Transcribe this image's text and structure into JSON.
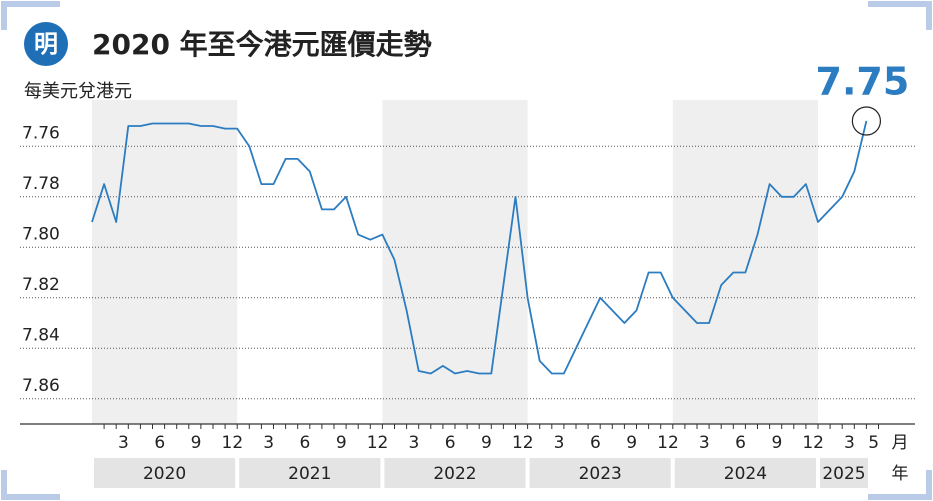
{
  "logo": "明",
  "chart_data": {
    "type": "line",
    "title": "2020 年至今港元匯價走勢",
    "y_label": "每美元兌港元",
    "annotation": "7.75",
    "month_unit": "月",
    "year_unit": "年",
    "categories": [
      null,
      null,
      "3",
      null,
      null,
      "6",
      null,
      null,
      "9",
      null,
      null,
      "12",
      null,
      null,
      "3",
      null,
      null,
      "6",
      null,
      null,
      "9",
      null,
      null,
      "12",
      null,
      null,
      "3",
      null,
      null,
      "6",
      null,
      null,
      "9",
      null,
      null,
      "12",
      null,
      null,
      "3",
      null,
      null,
      "6",
      null,
      null,
      "9",
      null,
      null,
      "12",
      null,
      null,
      "3",
      null,
      null,
      "6",
      null,
      null,
      "9",
      null,
      null,
      "12",
      null,
      null,
      "3",
      null,
      "5"
    ],
    "years": [
      "2020",
      "2021",
      "2022",
      "2023",
      "2024",
      "2025"
    ],
    "series": [
      {
        "name": "港元匯價",
        "color": "#2b7cc0",
        "values": [
          7.79,
          7.775,
          7.79,
          7.752,
          7.752,
          7.751,
          7.751,
          7.751,
          7.751,
          7.752,
          7.752,
          7.753,
          7.753,
          7.76,
          7.775,
          7.775,
          7.765,
          7.765,
          7.77,
          7.785,
          7.785,
          7.78,
          7.795,
          7.797,
          7.795,
          7.805,
          7.825,
          7.849,
          7.85,
          7.847,
          7.85,
          7.849,
          7.85,
          7.85,
          7.815,
          7.78,
          7.82,
          7.845,
          7.85,
          7.85,
          7.84,
          7.83,
          7.82,
          7.825,
          7.83,
          7.825,
          7.81,
          7.81,
          7.82,
          7.825,
          7.83,
          7.83,
          7.815,
          7.81,
          7.81,
          7.795,
          7.775,
          7.78,
          7.78,
          7.775,
          7.79,
          7.785,
          7.78,
          7.77,
          7.75
        ]
      }
    ],
    "ylim": [
      7.87,
      7.75
    ],
    "yticks": [
      7.76,
      7.78,
      {
        "value": 7.8,
        "label": "7.80"
      },
      7.82,
      7.84,
      7.86
    ],
    "grid": true,
    "band_color": "#efefef"
  }
}
